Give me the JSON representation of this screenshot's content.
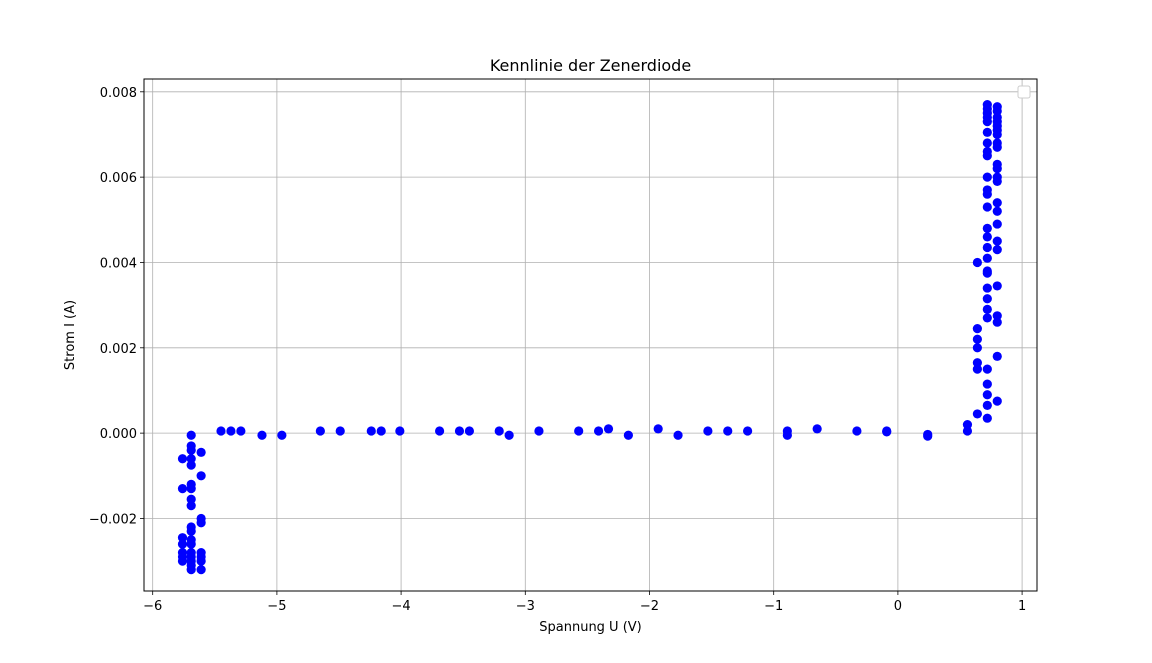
{
  "chart_data": {
    "type": "scatter",
    "title": "Kennlinie der Zenerdiode",
    "xlabel": "Spannung U (V)",
    "ylabel": "Strom I (A)",
    "xlim": [
      -6.07,
      1.12
    ],
    "ylim": [
      -0.0037,
      0.0083
    ],
    "x_ticks": [
      -6,
      -5,
      -4,
      -3,
      -2,
      -1,
      0,
      1
    ],
    "x_tick_labels": [
      "−6",
      "−5",
      "−4",
      "−3",
      "−2",
      "−1",
      "0",
      "1"
    ],
    "y_ticks": [
      -0.002,
      0.0,
      0.002,
      0.004,
      0.006,
      0.008
    ],
    "y_tick_labels": [
      "−0.002",
      "0.000",
      "0.002",
      "0.004",
      "0.006",
      "0.008"
    ],
    "grid": true,
    "legend": {
      "placement": "top-right",
      "entries": []
    },
    "series": [
      {
        "color": "#0000ff",
        "marker": "circle",
        "points": [
          [
            -5.76,
            -0.0006
          ],
          [
            -5.76,
            -0.0013
          ],
          [
            -5.76,
            -0.00245
          ],
          [
            -5.76,
            -0.0026
          ],
          [
            -5.76,
            -0.0028
          ],
          [
            -5.76,
            -0.0029
          ],
          [
            -5.76,
            -0.003
          ],
          [
            -5.69,
            -5e-05
          ],
          [
            -5.69,
            -0.0003
          ],
          [
            -5.69,
            -0.0004
          ],
          [
            -5.69,
            -0.0006
          ],
          [
            -5.69,
            -0.00075
          ],
          [
            -5.69,
            -0.0012
          ],
          [
            -5.69,
            -0.0013
          ],
          [
            -5.69,
            -0.00155
          ],
          [
            -5.69,
            -0.0017
          ],
          [
            -5.69,
            -0.0022
          ],
          [
            -5.69,
            -0.0023
          ],
          [
            -5.69,
            -0.0025
          ],
          [
            -5.69,
            -0.0026
          ],
          [
            -5.69,
            -0.0028
          ],
          [
            -5.69,
            -0.0029
          ],
          [
            -5.69,
            -0.003
          ],
          [
            -5.69,
            -0.0031
          ],
          [
            -5.69,
            -0.0032
          ],
          [
            -5.61,
            -0.00045
          ],
          [
            -5.61,
            -0.001
          ],
          [
            -5.61,
            -0.002
          ],
          [
            -5.61,
            -0.0021
          ],
          [
            -5.61,
            -0.0028
          ],
          [
            -5.61,
            -0.0029
          ],
          [
            -5.61,
            -0.003
          ],
          [
            -5.61,
            -0.0032
          ],
          [
            -5.45,
            5e-05
          ],
          [
            -5.37,
            5e-05
          ],
          [
            -5.29,
            5e-05
          ],
          [
            -5.12,
            -5e-05
          ],
          [
            -4.96,
            -5e-05
          ],
          [
            -4.65,
            5e-05
          ],
          [
            -4.49,
            5e-05
          ],
          [
            -4.24,
            5e-05
          ],
          [
            -4.16,
            5e-05
          ],
          [
            -4.01,
            5e-05
          ],
          [
            -3.69,
            5e-05
          ],
          [
            -3.53,
            5e-05
          ],
          [
            -3.45,
            5e-05
          ],
          [
            -3.21,
            5e-05
          ],
          [
            -3.13,
            -5e-05
          ],
          [
            -2.89,
            5e-05
          ],
          [
            -2.57,
            5e-05
          ],
          [
            -2.41,
            5e-05
          ],
          [
            -2.33,
            0.0001
          ],
          [
            -2.17,
            -5e-05
          ],
          [
            -1.93,
            0.0001
          ],
          [
            -1.77,
            -5e-05
          ],
          [
            -1.53,
            5e-05
          ],
          [
            -1.37,
            5e-05
          ],
          [
            -1.21,
            5e-05
          ],
          [
            -0.89,
            5e-05
          ],
          [
            -0.89,
            -5e-05
          ],
          [
            -0.65,
            0.0001
          ],
          [
            -0.33,
            5e-05
          ],
          [
            -0.09,
            5e-05
          ],
          [
            -0.09,
            3e-05
          ],
          [
            0.24,
            -3e-05
          ],
          [
            0.24,
            -7e-05
          ],
          [
            0.56,
            5e-05
          ],
          [
            0.56,
            0.0002
          ],
          [
            0.64,
            0.00045
          ],
          [
            0.64,
            0.0015
          ],
          [
            0.64,
            0.00165
          ],
          [
            0.64,
            0.002
          ],
          [
            0.64,
            0.0022
          ],
          [
            0.64,
            0.00245
          ],
          [
            0.64,
            0.004
          ],
          [
            0.72,
            0.00035
          ],
          [
            0.72,
            0.00065
          ],
          [
            0.72,
            0.0009
          ],
          [
            0.72,
            0.00115
          ],
          [
            0.72,
            0.0015
          ],
          [
            0.72,
            0.0027
          ],
          [
            0.72,
            0.0029
          ],
          [
            0.72,
            0.00315
          ],
          [
            0.72,
            0.0034
          ],
          [
            0.72,
            0.00375
          ],
          [
            0.72,
            0.0038
          ],
          [
            0.72,
            0.0041
          ],
          [
            0.72,
            0.00435
          ],
          [
            0.72,
            0.0046
          ],
          [
            0.72,
            0.0048
          ],
          [
            0.72,
            0.0053
          ],
          [
            0.72,
            0.0056
          ],
          [
            0.72,
            0.0057
          ],
          [
            0.72,
            0.006
          ],
          [
            0.72,
            0.0065
          ],
          [
            0.72,
            0.0066
          ],
          [
            0.72,
            0.0068
          ],
          [
            0.72,
            0.00705
          ],
          [
            0.72,
            0.0073
          ],
          [
            0.72,
            0.0074
          ],
          [
            0.72,
            0.0075
          ],
          [
            0.72,
            0.0076
          ],
          [
            0.72,
            0.0077
          ],
          [
            0.8,
            0.00075
          ],
          [
            0.8,
            0.0018
          ],
          [
            0.8,
            0.0026
          ],
          [
            0.8,
            0.00275
          ],
          [
            0.8,
            0.00345
          ],
          [
            0.8,
            0.0043
          ],
          [
            0.8,
            0.0045
          ],
          [
            0.8,
            0.0049
          ],
          [
            0.8,
            0.0052
          ],
          [
            0.8,
            0.0054
          ],
          [
            0.8,
            0.0059
          ],
          [
            0.8,
            0.006
          ],
          [
            0.8,
            0.0062
          ],
          [
            0.8,
            0.0063
          ],
          [
            0.8,
            0.0067
          ],
          [
            0.8,
            0.0068
          ],
          [
            0.8,
            0.007
          ],
          [
            0.8,
            0.0071
          ],
          [
            0.8,
            0.0072
          ],
          [
            0.8,
            0.0073
          ],
          [
            0.8,
            0.0074
          ],
          [
            0.8,
            0.00755
          ],
          [
            0.8,
            0.00765
          ]
        ]
      }
    ]
  }
}
